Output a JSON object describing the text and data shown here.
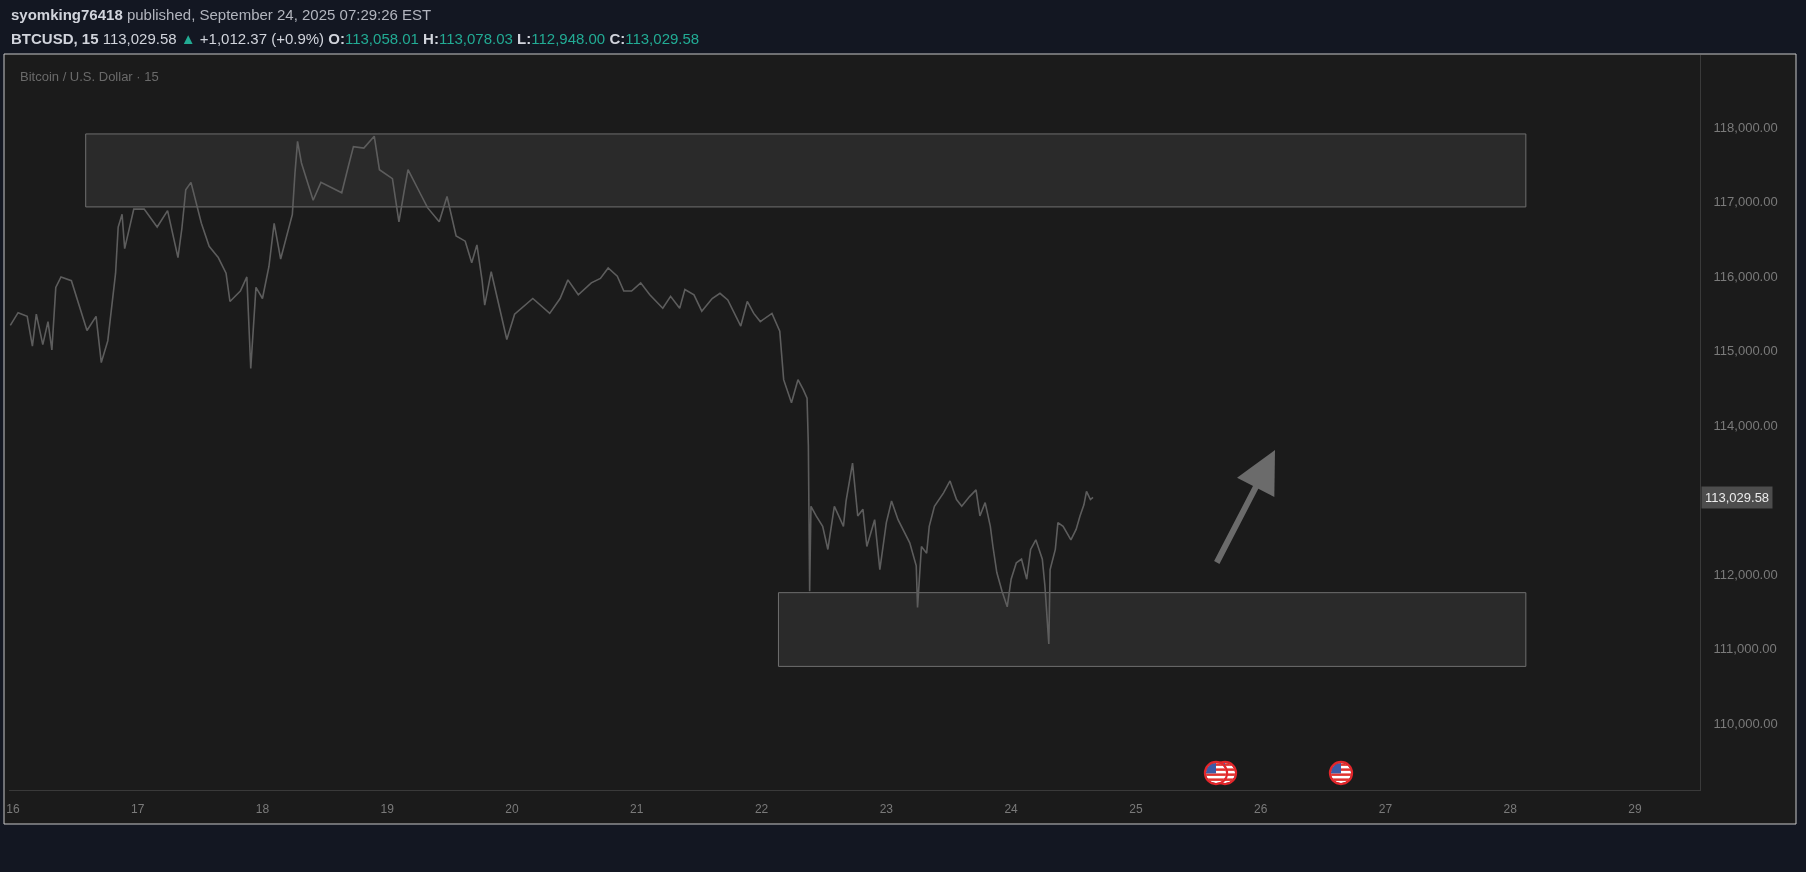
{
  "chart_data": {
    "type": "line",
    "title": "Bitcoin / U.S. Dollar · 15",
    "annotations": [
      "syomking76418 published, September 24, 2025 07:29:26 EST",
      "BTCUSD, 15 113,029.58 ▲ +1,012.37 (+0.9%) O:113,058.01 H:113,078.03 L:112,948.00 C:113,029.58",
      "113,029.58"
    ],
    "x": [
      "2025-09-15T23:30",
      "2025-09-16T01:00",
      "2025-09-16T02:45",
      "2025-09-16T03:45",
      "2025-09-16T04:30",
      "2025-09-16T05:45",
      "2025-09-16T06:45",
      "2025-09-16T07:30",
      "2025-09-16T08:15",
      "2025-09-16T09:15",
      "2025-09-16T11:15",
      "2025-09-16T14:15",
      "2025-09-16T16:00",
      "2025-09-16T17:00",
      "2025-09-16T18:15",
      "2025-09-16T19:45",
      "2025-09-16T20:15",
      "2025-09-16T21:00",
      "2025-09-16T21:30",
      "2025-09-16T23:15",
      "2025-09-17T01:15",
      "2025-09-17T03:45",
      "2025-09-17T05:45",
      "2025-09-17T07:45",
      "2025-09-17T08:30",
      "2025-09-17T09:15",
      "2025-09-17T10:15",
      "2025-09-17T12:15",
      "2025-09-17T13:45",
      "2025-09-17T15:30",
      "2025-09-17T17:00",
      "2025-09-17T17:45",
      "2025-09-17T19:45",
      "2025-09-17T21:00",
      "2025-09-17T21:45",
      "2025-09-17T22:45",
      "2025-09-18T00:00",
      "2025-09-18T01:15",
      "2025-09-18T02:15",
      "2025-09-18T03:30",
      "2025-09-18T05:45",
      "2025-09-18T06:15",
      "2025-09-18T06:45",
      "2025-09-18T07:30",
      "2025-09-18T09:45",
      "2025-09-18T11:15",
      "2025-09-18T15:15",
      "2025-09-18T16:30",
      "2025-09-18T17:30",
      "2025-09-18T19:30",
      "2025-09-18T21:30",
      "2025-09-18T22:30",
      "2025-09-19T01:00",
      "2025-09-19T02:15",
      "2025-09-19T03:15",
      "2025-09-19T04:00",
      "2025-09-19T06:30",
      "2025-09-19T07:45",
      "2025-09-19T10:00",
      "2025-09-19T11:30",
      "2025-09-19T13:15",
      "2025-09-19T15:00",
      "2025-09-19T16:15",
      "2025-09-19T17:15",
      "2025-09-19T18:15",
      "2025-09-19T18:45",
      "2025-09-19T20:00",
      "2025-09-19T23:00",
      "2025-09-20T00:30",
      "2025-09-20T04:00",
      "2025-09-20T07:15",
      "2025-09-20T09:15",
      "2025-09-20T10:45",
      "2025-09-20T12:45",
      "2025-09-20T15:15",
      "2025-09-20T17:00",
      "2025-09-20T18:30",
      "2025-09-20T20:15",
      "2025-09-20T21:30",
      "2025-09-20T23:00",
      "2025-09-21T00:45",
      "2025-09-21T02:30",
      "2025-09-21T05:00",
      "2025-09-21T06:30",
      "2025-09-21T08:15",
      "2025-09-21T09:15",
      "2025-09-21T11:00",
      "2025-09-21T12:30",
      "2025-09-21T14:30",
      "2025-09-21T16:00",
      "2025-09-21T17:30",
      "2025-09-21T20:00",
      "2025-09-21T21:15",
      "2025-09-21T22:30",
      "2025-09-21T23:45",
      "2025-09-22T02:00",
      "2025-09-22T03:30",
      "2025-09-22T04:15",
      "2025-09-22T05:45",
      "2025-09-22T07:00",
      "2025-09-22T08:00",
      "2025-09-22T08:45",
      "2025-09-22T09:00",
      "2025-09-22T09:15",
      "2025-09-22T09:30",
      "2025-09-22T10:30",
      "2025-09-22T11:45",
      "2025-09-22T12:45",
      "2025-09-22T14:00",
      "2025-09-22T15:45",
      "2025-09-22T16:15",
      "2025-09-22T17:30",
      "2025-09-22T18:30",
      "2025-09-22T19:30",
      "2025-09-22T20:15",
      "2025-09-22T21:45",
      "2025-09-22T22:45",
      "2025-09-23T00:00",
      "2025-09-23T01:00",
      "2025-09-23T02:15",
      "2025-09-23T04:30",
      "2025-09-23T05:45",
      "2025-09-23T06:00",
      "2025-09-23T06:45",
      "2025-09-23T07:45",
      "2025-09-23T08:15",
      "2025-09-23T09:15",
      "2025-09-23T11:00",
      "2025-09-23T12:15",
      "2025-09-23T13:30",
      "2025-09-23T14:30",
      "2025-09-23T16:00",
      "2025-09-23T17:15",
      "2025-09-23T18:00",
      "2025-09-23T19:00",
      "2025-09-23T20:00",
      "2025-09-23T20:30",
      "2025-09-23T21:15",
      "2025-09-23T22:15",
      "2025-09-23T23:15",
      "2025-09-24T00:00",
      "2025-09-24T01:00",
      "2025-09-24T02:00",
      "2025-09-24T03:00",
      "2025-09-24T03:45",
      "2025-09-24T04:45",
      "2025-09-24T06:00",
      "2025-09-24T06:30",
      "2025-09-24T07:15",
      "2025-09-24T07:30",
      "2025-09-24T08:30",
      "2025-09-24T09:00",
      "2025-09-24T10:00",
      "2025-09-24T11:30",
      "2025-09-24T12:30",
      "2025-09-24T13:15",
      "2025-09-24T14:00",
      "2025-09-24T14:30",
      "2025-09-24T15:15",
      "2025-09-24T15:45"
    ],
    "series": [
      {
        "color": "#5d5d5d",
        "values": [
          115340,
          115510,
          115460,
          115060,
          115490,
          115080,
          115390,
          115010,
          115850,
          115990,
          115940,
          115270,
          115460,
          114840,
          115130,
          116040,
          116660,
          116830,
          116370,
          116900,
          116900,
          116660,
          116880,
          116250,
          116640,
          117160,
          117260,
          116710,
          116400,
          116250,
          116040,
          115660,
          115800,
          115990,
          114760,
          115850,
          115700,
          116130,
          116710,
          116230,
          116830,
          117380,
          117810,
          117520,
          117020,
          117260,
          117120,
          117470,
          117740,
          117720,
          117880,
          117430,
          117310,
          116730,
          117140,
          117430,
          117090,
          116920,
          116730,
          117070,
          116540,
          116470,
          116180,
          116420,
          115940,
          115610,
          116060,
          115150,
          115490,
          115700,
          115500,
          115700,
          115950,
          115750,
          115910,
          115970,
          116110,
          116000,
          115800,
          115800,
          115910,
          115750,
          115570,
          115730,
          115570,
          115820,
          115750,
          115530,
          115700,
          115770,
          115680,
          115330,
          115660,
          115500,
          115390,
          115500,
          115260,
          114610,
          114300,
          114610,
          114480,
          114360,
          113720,
          111770,
          112910,
          112780,
          112640,
          112330,
          112910,
          112640,
          112980,
          113490,
          112780,
          112870,
          112370,
          112730,
          112060,
          112690,
          112980,
          112730,
          112420,
          112110,
          111550,
          112370,
          112280,
          112640,
          112910,
          113090,
          113250,
          113000,
          112910,
          113040,
          113130,
          112780,
          112960,
          112640,
          112370,
          112020,
          111770,
          111560,
          111930,
          112150,
          112200,
          111930,
          112330,
          112460,
          112200,
          111840,
          111060,
          112060,
          112330,
          112690,
          112640,
          112460,
          112600,
          112780,
          112930,
          113110,
          113000,
          113029.58
        ]
      },
      {
        "type": "line",
        "color": "#2a2a2a",
        "x": [
          "2025-09-16T14:00",
          "2025-09-28T03:00"
        ],
        "values": [
          null,
          null
        ],
        "lower": [
          116930,
          116930
        ],
        "upper": [
          117910,
          117910
        ]
      },
      {
        "type": "line",
        "color": "#2a2a2a",
        "x": [
          "2025-09-22T03:15",
          "2025-09-28T03:00"
        ],
        "values": [
          null,
          null
        ],
        "lower": [
          110760,
          110760
        ],
        "upper": [
          111750,
          111750
        ]
      }
    ],
    "xlim": [
      "2025-09-15T23:15",
      "2025-09-29T12:30"
    ],
    "xticks": [
      {
        "value": "2025-09-16",
        "label": "16"
      },
      {
        "value": "2025-09-17",
        "label": "17"
      },
      {
        "value": "2025-09-18",
        "label": "18"
      },
      {
        "value": "2025-09-19",
        "label": "19"
      },
      {
        "value": "2025-09-20",
        "label": "20"
      },
      {
        "value": "2025-09-21",
        "label": "21"
      },
      {
        "value": "2025-09-22",
        "label": "22"
      },
      {
        "value": "2025-09-23",
        "label": "23"
      },
      {
        "value": "2025-09-24",
        "label": "24"
      },
      {
        "value": "2025-09-25",
        "label": "25"
      },
      {
        "value": "2025-09-26",
        "label": "26"
      },
      {
        "value": "2025-09-27",
        "label": "27"
      },
      {
        "value": "2025-09-28",
        "label": "28"
      },
      {
        "value": "2025-09-29",
        "label": "29"
      }
    ],
    "ylim": [
      109100,
      118970
    ],
    "yticks": [
      {
        "value": 110000,
        "label": "110,000.00"
      },
      {
        "value": 111000,
        "label": "111,000.00"
      },
      {
        "value": 112000,
        "label": "112,000.00"
      },
      {
        "value": 114000,
        "label": "114,000.00"
      },
      {
        "value": 115000,
        "label": "115,000.00"
      },
      {
        "value": 116000,
        "label": "116,000.00"
      },
      {
        "value": 117000,
        "label": "117,000.00"
      },
      {
        "value": 118000,
        "label": "118,000.00"
      }
    ]
  }
}
